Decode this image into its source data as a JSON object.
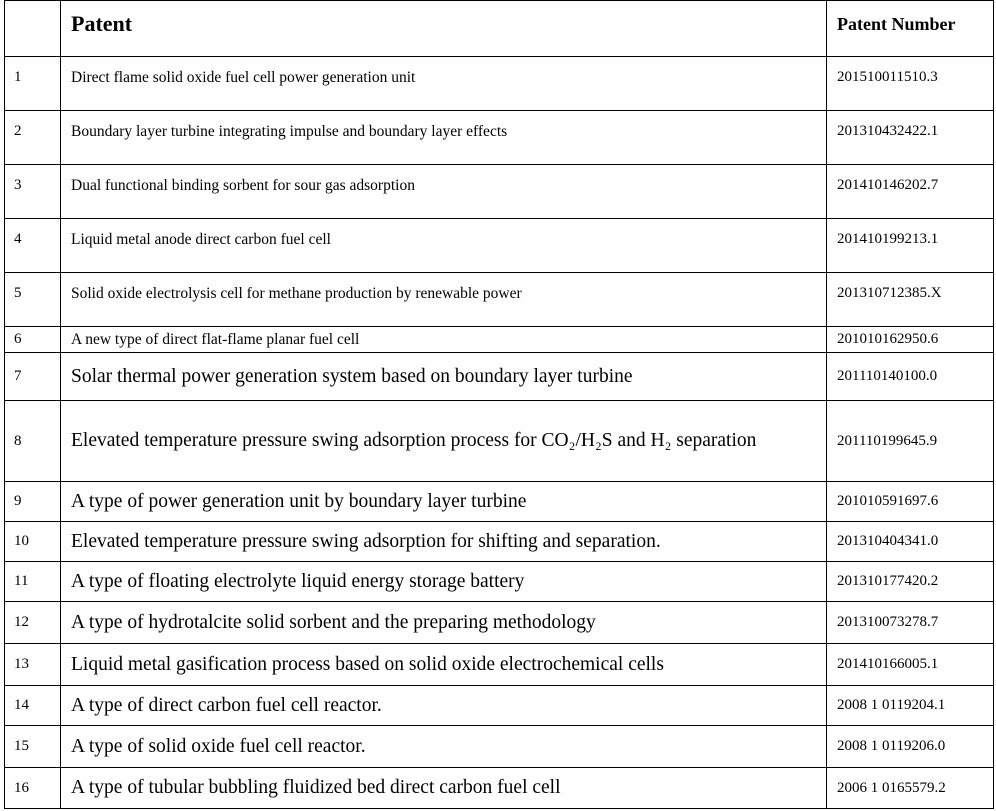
{
  "table": {
    "headers": {
      "index": "",
      "patent": "Patent",
      "number": "Patent Number"
    },
    "rows": [
      {
        "index": "1",
        "patent": "Direct flame solid oxide fuel cell power generation unit",
        "number": "201510011510.3"
      },
      {
        "index": "2",
        "patent": "Boundary layer turbine integrating impulse and boundary layer effects",
        "number": "201310432422.1"
      },
      {
        "index": "3",
        "patent": "Dual functional binding sorbent for sour gas adsorption",
        "number": "201410146202.7"
      },
      {
        "index": "4",
        "patent": "Liquid metal anode direct carbon fuel cell",
        "number": "201410199213.1"
      },
      {
        "index": "5",
        "patent": "Solid oxide electrolysis cell for methane production by renewable power",
        "number": "201310712385.X"
      },
      {
        "index": "6",
        "patent": "A new type of direct flat-flame planar fuel cell",
        "number": "201010162950.6"
      },
      {
        "index": "7",
        "patent": "Solar thermal power generation system based on boundary layer turbine",
        "number": "201110140100.0"
      },
      {
        "index": "8",
        "patent": "Elevated temperature pressure swing adsorption process for CO₂/H₂S and H₂ separation",
        "number": "201110199645.9"
      },
      {
        "index": "9",
        "patent": "A type of power generation unit by boundary layer turbine",
        "number": "201010591697.6"
      },
      {
        "index": "10",
        "patent": "Elevated temperature pressure swing adsorption for shifting and separation.",
        "number": "201310404341.0"
      },
      {
        "index": "11",
        "patent": "A type of floating electrolyte liquid energy storage battery",
        "number": "201310177420.2"
      },
      {
        "index": "12",
        "patent": "A type of hydrotalcite solid sorbent and the preparing methodology",
        "number": "201310073278.7"
      },
      {
        "index": "13",
        "patent": "Liquid metal gasification process based on solid oxide electrochemical cells",
        "number": "201410166005.1"
      },
      {
        "index": "14",
        "patent": "A type of direct carbon fuel cell reactor.",
        "number": "2008 1 0119204.1"
      },
      {
        "index": "15",
        "patent": "A type of solid oxide fuel cell reactor.",
        "number": "2008 1 0119206.0"
      },
      {
        "index": "16",
        "patent": "A type of tubular bubbling fluidized bed direct carbon fuel cell",
        "number": "2006 1 0165579.2"
      }
    ]
  }
}
